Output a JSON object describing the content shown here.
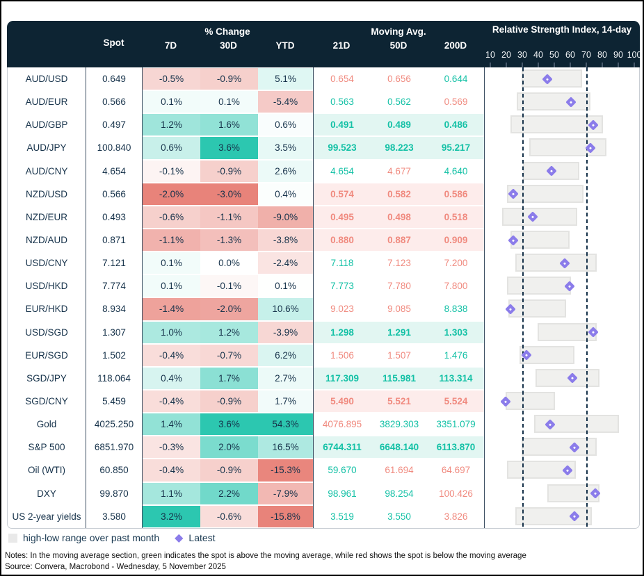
{
  "header": {
    "spot": "Spot",
    "pct_group": "% Change",
    "pct_cols": [
      "7D",
      "30D",
      "YTD"
    ],
    "ma_group": "Moving Avg.",
    "ma_cols": [
      "21D",
      "50D",
      "200D"
    ],
    "rsi_group": "Relative Strength Index, 14-day",
    "rsi_scale": [
      10,
      20,
      30,
      40,
      50,
      60,
      70,
      80,
      90,
      100
    ]
  },
  "chart_data": {
    "type": "table",
    "title": "FX and markets dashboard: spot, % change, moving averages, RSI",
    "columns": [
      "Pair",
      "Spot",
      "7D %",
      "30D %",
      "YTD %",
      "21D MA",
      "50D MA",
      "200D MA",
      "RSI low",
      "RSI high",
      "RSI latest"
    ],
    "rsi_axis": {
      "min": 10,
      "max": 100,
      "ticks": [
        10,
        20,
        30,
        40,
        50,
        60,
        70,
        80,
        90,
        100
      ],
      "reference_lines": [
        30,
        70
      ]
    },
    "rows": [
      {
        "label": "AUD/USD",
        "spot": "0.649",
        "pct": [
          -0.5,
          -0.9,
          5.1
        ],
        "ma": [
          "0.654",
          "0.656",
          "0.644"
        ],
        "rsi": {
          "low": 29,
          "high": 67,
          "latest": 45
        }
      },
      {
        "label": "AUD/EUR",
        "spot": "0.566",
        "pct": [
          0.1,
          0.1,
          -5.4
        ],
        "ma": [
          "0.563",
          "0.562",
          "0.569"
        ],
        "rsi": {
          "low": 26,
          "high": 72,
          "latest": 60
        }
      },
      {
        "label": "AUD/GBP",
        "spot": "0.497",
        "pct": [
          1.2,
          1.6,
          0.6
        ],
        "ma": [
          "0.491",
          "0.489",
          "0.486"
        ],
        "rsi": {
          "low": 22,
          "high": 80,
          "latest": 74
        }
      },
      {
        "label": "AUD/JPY",
        "spot": "100.840",
        "pct": [
          0.6,
          3.6,
          3.5
        ],
        "ma": [
          "99.523",
          "98.223",
          "95.217"
        ],
        "rsi": {
          "low": 34,
          "high": 82,
          "latest": 72
        }
      },
      {
        "label": "AUD/CNY",
        "spot": "4.654",
        "pct": [
          -0.1,
          -0.9,
          2.6
        ],
        "ma": [
          "4.654",
          "4.677",
          "4.640"
        ],
        "rsi": {
          "low": 30,
          "high": 65,
          "latest": 48
        }
      },
      {
        "label": "NZD/USD",
        "spot": "0.566",
        "pct": [
          -2.0,
          -3.0,
          0.4
        ],
        "ma": [
          "0.574",
          "0.582",
          "0.586"
        ],
        "rsi": {
          "low": 20,
          "high": 68,
          "latest": 24
        }
      },
      {
        "label": "NZD/EUR",
        "spot": "0.493",
        "pct": [
          -0.6,
          -1.1,
          -9.0
        ],
        "ma": [
          "0.495",
          "0.498",
          "0.518"
        ],
        "rsi": {
          "low": 17,
          "high": 64,
          "latest": 36
        }
      },
      {
        "label": "NZD/AUD",
        "spot": "0.871",
        "pct": [
          -1.1,
          -1.3,
          -3.8
        ],
        "ma": [
          "0.880",
          "0.887",
          "0.909"
        ],
        "rsi": {
          "low": 22,
          "high": 59,
          "latest": 24
        }
      },
      {
        "label": "USD/CNY",
        "spot": "7.121",
        "pct": [
          0.1,
          0.0,
          -2.4
        ],
        "ma": [
          "7.118",
          "7.123",
          "7.200"
        ],
        "rsi": {
          "low": 25,
          "high": 76,
          "latest": 56
        }
      },
      {
        "label": "USD/HKD",
        "spot": "7.774",
        "pct": [
          0.1,
          -0.1,
          0.1
        ],
        "ma": [
          "7.773",
          "7.780",
          "7.800"
        ],
        "rsi": {
          "low": 20,
          "high": 60,
          "latest": 59
        }
      },
      {
        "label": "EUR/HKD",
        "spot": "8.934",
        "pct": [
          -1.4,
          -2.0,
          10.6
        ],
        "ma": [
          "9.023",
          "9.085",
          "8.838"
        ],
        "rsi": {
          "low": 21,
          "high": 57,
          "latest": 22
        }
      },
      {
        "label": "USD/SGD",
        "spot": "1.307",
        "pct": [
          1.0,
          1.2,
          -3.9
        ],
        "ma": [
          "1.298",
          "1.291",
          "1.303"
        ],
        "rsi": {
          "low": 39,
          "high": 76,
          "latest": 74
        }
      },
      {
        "label": "EUR/SGD",
        "spot": "1.502",
        "pct": [
          -0.4,
          -0.7,
          6.2
        ],
        "ma": [
          "1.506",
          "1.507",
          "1.476"
        ],
        "rsi": {
          "low": 28,
          "high": 62,
          "latest": 32
        }
      },
      {
        "label": "SGD/JPY",
        "spot": "118.064",
        "pct": [
          0.4,
          1.7,
          2.7
        ],
        "ma": [
          "117.309",
          "115.981",
          "113.314"
        ],
        "rsi": {
          "low": 38,
          "high": 78,
          "latest": 61
        }
      },
      {
        "label": "SGD/CNY",
        "spot": "5.459",
        "pct": [
          -0.4,
          -0.9,
          1.7
        ],
        "ma": [
          "5.490",
          "5.521",
          "5.524"
        ],
        "rsi": {
          "low": 19,
          "high": 50,
          "latest": 19
        }
      },
      {
        "label": "Gold",
        "spot": "4025.250",
        "pct": [
          1.4,
          3.6,
          54.3
        ],
        "ma": [
          "4076.895",
          "3829.303",
          "3351.079"
        ],
        "rsi": {
          "low": 37,
          "high": 90,
          "latest": 47
        }
      },
      {
        "label": "S&P 500",
        "spot": "6851.970",
        "pct": [
          -0.3,
          2.0,
          16.5
        ],
        "ma": [
          "6744.311",
          "6648.140",
          "6113.870"
        ],
        "rsi": {
          "low": 29,
          "high": 76,
          "latest": 62
        }
      },
      {
        "label": "Oil (WTI)",
        "spot": "60.850",
        "pct": [
          -0.4,
          -0.9,
          -15.3
        ],
        "ma": [
          "59.670",
          "61.694",
          "64.697"
        ],
        "rsi": {
          "low": 20,
          "high": 63,
          "latest": 58
        }
      },
      {
        "label": "DXY",
        "spot": "99.870",
        "pct": [
          1.1,
          2.2,
          -7.9
        ],
        "ma": [
          "98.961",
          "98.254",
          "100.426"
        ],
        "rsi": {
          "low": 45,
          "high": 78,
          "latest": 75
        }
      },
      {
        "label": "US 2-year yields",
        "spot": "3.580",
        "pct": [
          3.2,
          -0.6,
          -15.8
        ],
        "ma": [
          "3.519",
          "3.550",
          "3.826"
        ],
        "rsi": {
          "low": 25,
          "high": 73,
          "latest": 62
        }
      }
    ]
  },
  "legend": {
    "range_label": "high-low range over past month",
    "latest_label": "Latest",
    "diamond_icon": "◆"
  },
  "footer": {
    "notes": "Notes: In the moving average section, green indicates the spot is above the moving average, while red shows the spot is below the moving average",
    "source": "Source: Convera, Macrobond - Wednesday, 5 November 2025"
  },
  "colors": {
    "header_bg": "#0d2433",
    "text_dark": "#16324a",
    "teal_text": "#14c1a6",
    "red_text": "#f08a7f",
    "teal_bg_strong": "#2cc7b0",
    "red_bg_strong": "#e8837a",
    "ma_above_bg": "#e2f6f2",
    "ma_below_bg": "#fdeceb",
    "bar_fill": "#f0f0ee",
    "bar_border": "#e3e3e1",
    "diamond": "#8b7cea"
  }
}
